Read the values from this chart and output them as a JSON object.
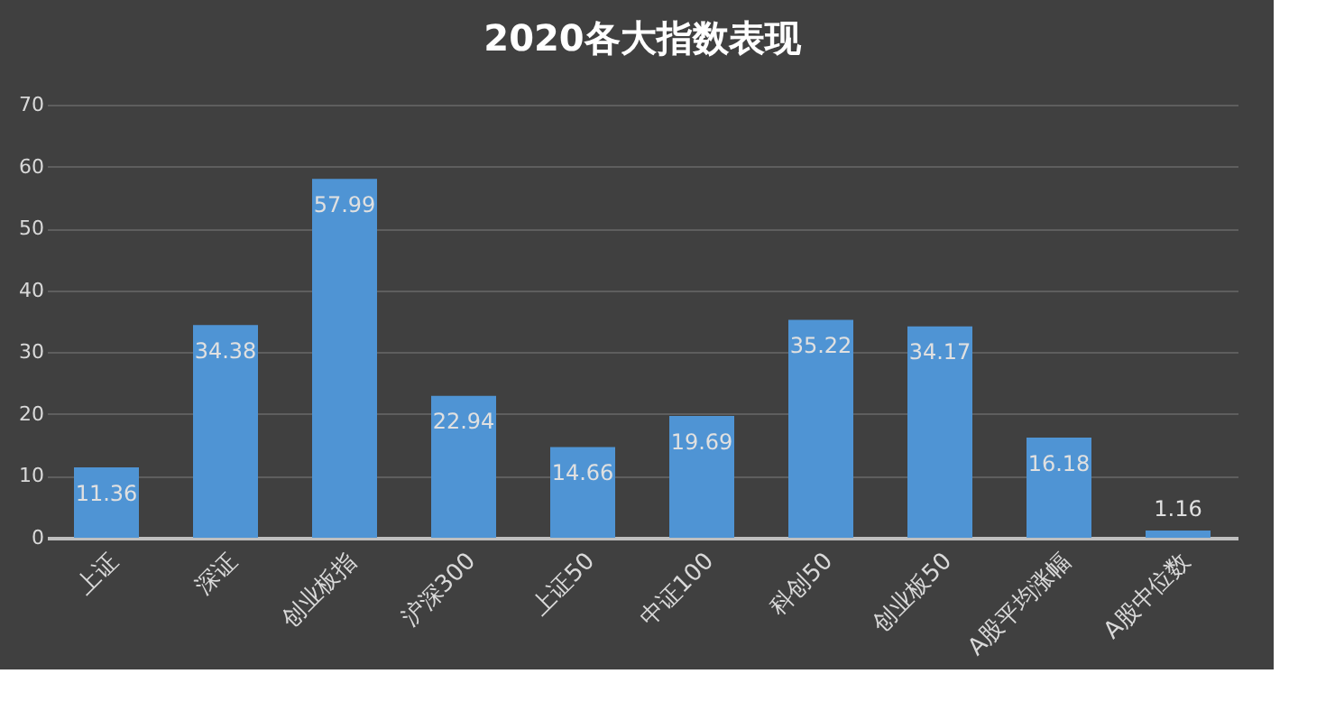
{
  "chart_data": {
    "type": "bar",
    "title": "2020各大指数表现",
    "categories": [
      "上证",
      "深证",
      "创业板指",
      "沪深300",
      "上证50",
      "中证100",
      "科创50",
      "创业板50",
      "A股平均涨幅",
      "A股中位数"
    ],
    "values": [
      11.36,
      34.38,
      57.99,
      22.94,
      14.66,
      19.69,
      35.22,
      34.17,
      16.18,
      1.16
    ],
    "color": "#4f94d4",
    "ylim": [
      0,
      70
    ],
    "yticks": [
      0,
      10,
      20,
      30,
      40,
      50,
      60,
      70
    ],
    "grid": "y",
    "data_labels": true
  }
}
